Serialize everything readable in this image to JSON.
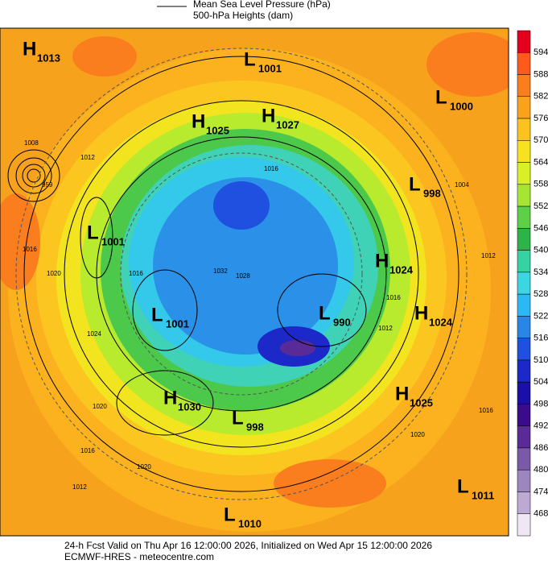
{
  "legend": {
    "items": [
      "Mean Sea Level Pressure (hPa)",
      "500-hPa Heights (dam)"
    ]
  },
  "centers": [
    {
      "kind": "H",
      "value": "1013"
    },
    {
      "kind": "L",
      "value": "1001"
    },
    {
      "kind": "L",
      "value": "1000"
    },
    {
      "kind": "H",
      "value": "1025"
    },
    {
      "kind": "H",
      "value": "1027"
    },
    {
      "kind": "L",
      "value": "998"
    },
    {
      "kind": "L",
      "value": "1001"
    },
    {
      "kind": "H",
      "value": "1024"
    },
    {
      "kind": "L",
      "value": "990"
    },
    {
      "kind": "L",
      "value": "1001"
    },
    {
      "kind": "H",
      "value": "1024"
    },
    {
      "kind": "H",
      "value": "1030"
    },
    {
      "kind": "H",
      "value": "1025"
    },
    {
      "kind": "L",
      "value": "998"
    },
    {
      "kind": "L",
      "value": "1011"
    },
    {
      "kind": "L",
      "value": "1010"
    }
  ],
  "contour_labels": [
    "959",
    "1008",
    "1012",
    "1016",
    "1020",
    "1024",
    "1016",
    "1032",
    "1028",
    "1012",
    "1016",
    "1020",
    "1020",
    "1016",
    "1012",
    "1020",
    "1004",
    "1012",
    "1016",
    "1016"
  ],
  "colorbar": {
    "levels": [
      594,
      588,
      582,
      576,
      570,
      564,
      558,
      552,
      546,
      540,
      534,
      528,
      522,
      516,
      510,
      504,
      498,
      492,
      486,
      480,
      474,
      468
    ],
    "colors": [
      "#e4001c",
      "#fe5a1e",
      "#fa7d1e",
      "#fba21c",
      "#fcc21e",
      "#f6e21e",
      "#d9f026",
      "#a6e632",
      "#5cd046",
      "#2cb34a",
      "#36d2a2",
      "#3ad6e2",
      "#2cb8f2",
      "#2a86e6",
      "#2050e0",
      "#1c28c8",
      "#1a10a8",
      "#3a0c8c",
      "#5a2a96",
      "#7a5aa8",
      "#9c86be",
      "#bcaad2",
      "#efe8f4"
    ]
  },
  "footer": {
    "line1": "24-h Fcst Valid on Thu Apr 16 12:00:00 2026, Initialized on Wed Apr 15 12:00:00 2026",
    "line2": "ECMWF-HRES  - meteocentre.com"
  }
}
